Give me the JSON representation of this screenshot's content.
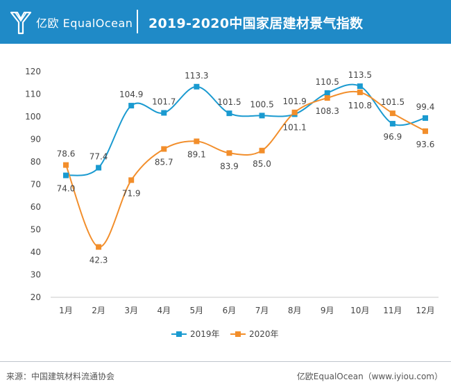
{
  "header": {
    "brand": "亿欧 EqualOcean",
    "title": "2019-2020中国家居建材景气指数"
  },
  "colors": {
    "header_bg": "#1f8ac7",
    "series_2019": "#1a9ad0",
    "series_2020": "#f28e2b"
  },
  "chart_data": {
    "type": "line",
    "title": "2019-2020中国家居建材景气指数",
    "categories": [
      "1月",
      "2月",
      "3月",
      "4月",
      "5月",
      "6月",
      "7月",
      "8月",
      "9月",
      "10月",
      "11月",
      "12月"
    ],
    "series": [
      {
        "name": "2019年",
        "values": [
          74.0,
          77.4,
          104.9,
          101.7,
          113.3,
          101.5,
          100.5,
          101.1,
          110.5,
          113.5,
          96.9,
          99.4
        ]
      },
      {
        "name": "2020年",
        "values": [
          78.6,
          42.3,
          71.9,
          85.7,
          89.1,
          83.9,
          85.0,
          101.9,
          108.3,
          110.8,
          101.5,
          93.6
        ]
      }
    ],
    "ylim": [
      20,
      120
    ],
    "yticks": [
      20,
      30,
      40,
      50,
      60,
      70,
      80,
      90,
      100,
      110,
      120
    ],
    "xlabel": "",
    "ylabel": "",
    "legend": "bottom-center",
    "grid": false
  },
  "footer": {
    "source": "来源：中国建筑材料流通协会",
    "credit": "亿欧EqualOcean（www.iyiou.com）"
  }
}
